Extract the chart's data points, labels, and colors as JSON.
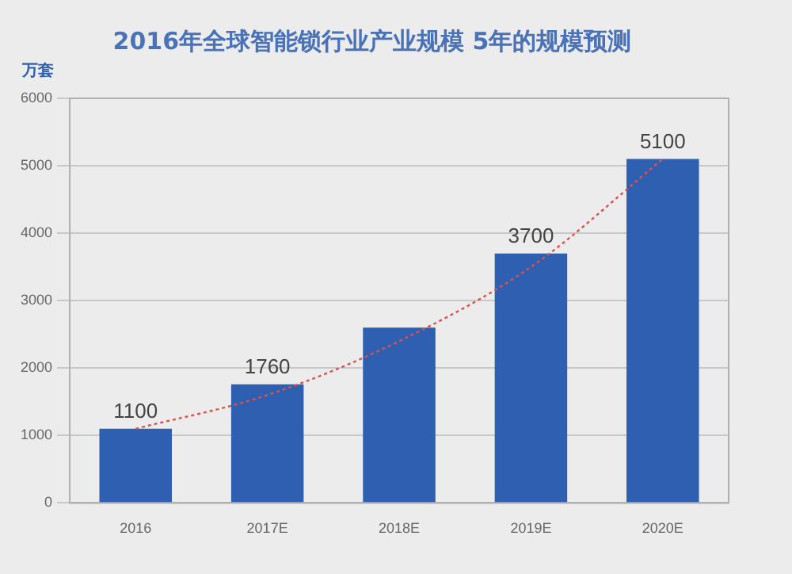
{
  "chart_data": {
    "type": "bar",
    "title": "2016年全球智能锁行业产业规模 5年的规模预测",
    "ylabel": "万套",
    "categories": [
      "2016",
      "2017E",
      "2018E",
      "2019E",
      "2020E"
    ],
    "series": [
      {
        "color": "#2e5fb0",
        "values": [
          1100,
          1760,
          2600,
          3700,
          5100
        ],
        "value_labels": [
          "1100",
          "1760",
          null,
          "3700",
          "5100"
        ]
      },
      {
        "type": "line",
        "color": "#d9534f",
        "values": [
          1100,
          1600,
          2400,
          3500,
          5100
        ],
        "line_style": "dotted",
        "marker": "none"
      }
    ],
    "ylim": [
      0,
      6000
    ],
    "yticks": [
      0,
      1000,
      2000,
      3000,
      4000,
      5000,
      6000
    ],
    "grid": "y",
    "legend": false
  }
}
